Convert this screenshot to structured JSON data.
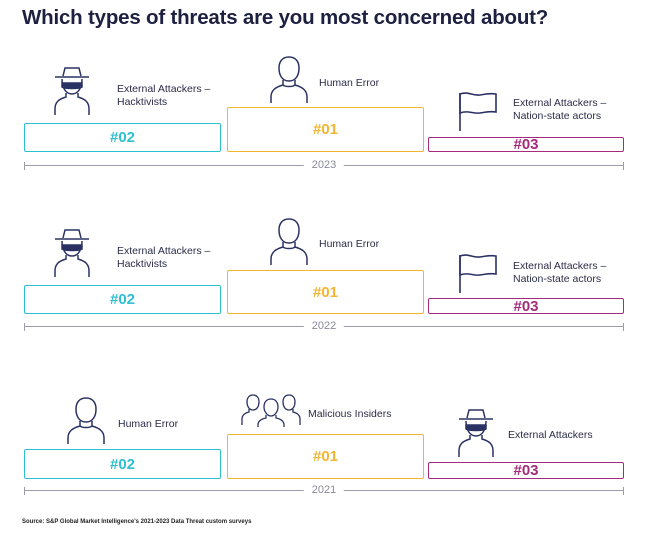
{
  "title": "Which types of threats are you most concerned about?",
  "colors": {
    "rank1": "#f2b52f",
    "rank2": "#2dbfd2",
    "rank3": "#a52a7c",
    "icon": "#2b3263",
    "line": "#9c9cab"
  },
  "sections": [
    {
      "year": "2023",
      "items": [
        {
          "rank": "#02",
          "label_lines": [
            "External Attackers –",
            "Hacktivists"
          ],
          "icon": "hacker-icon"
        },
        {
          "rank": "#01",
          "label_lines": [
            "Human Error"
          ],
          "icon": "person-icon"
        },
        {
          "rank": "#03",
          "label_lines": [
            "External Attackers –",
            "Nation-state actors"
          ],
          "icon": "flag-icon"
        }
      ]
    },
    {
      "year": "2022",
      "items": [
        {
          "rank": "#02",
          "label_lines": [
            "External Attackers –",
            "Hacktivists"
          ],
          "icon": "hacker-icon"
        },
        {
          "rank": "#01",
          "label_lines": [
            "Human Error"
          ],
          "icon": "person-icon"
        },
        {
          "rank": "#03",
          "label_lines": [
            "External Attackers –",
            "Nation-state actors"
          ],
          "icon": "flag-icon"
        }
      ]
    },
    {
      "year": "2021",
      "items": [
        {
          "rank": "#02",
          "label_lines": [
            "Human Error"
          ],
          "icon": "person-icon"
        },
        {
          "rank": "#01",
          "label_lines": [
            "Malicious Insiders"
          ],
          "icon": "group-icon"
        },
        {
          "rank": "#03",
          "label_lines": [
            "External Attackers"
          ],
          "icon": "hacker-icon"
        }
      ]
    }
  ],
  "source": "Source: S&P Global Market Intelligence's 2021-2023 Data Threat custom surveys"
}
